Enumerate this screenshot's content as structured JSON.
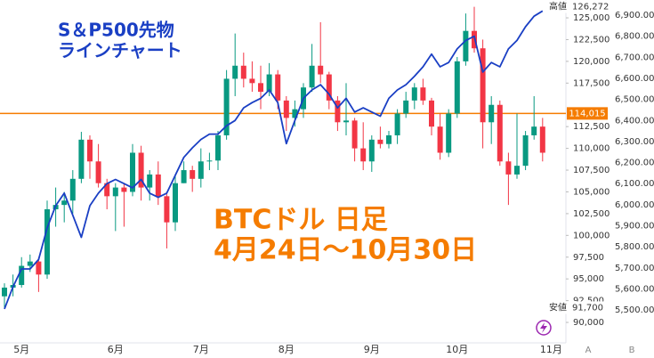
{
  "chart_data": {
    "type": "candlestick",
    "annotations": [
      "S＆P500先物",
      "ラインチャート",
      "BTCドル 日足",
      "4月24日〜10月30日"
    ],
    "annotation_colors": [
      "#1a3fc4",
      "#f57c00"
    ],
    "categories": [
      null,
      null,
      "5月",
      null,
      null,
      null,
      null,
      null,
      null,
      null,
      null,
      null,
      null,
      "6月",
      null,
      null,
      null,
      null,
      null,
      null,
      null,
      null,
      null,
      "7月",
      null,
      null,
      null,
      null,
      null,
      null,
      null,
      null,
      null,
      "8月",
      null,
      null,
      null,
      null,
      null,
      null,
      null,
      null,
      null,
      "9月",
      null,
      null,
      null,
      null,
      null,
      null,
      null,
      null,
      null,
      "10月",
      null,
      null,
      null,
      null,
      null,
      null,
      null,
      null,
      null,
      null,
      "11月"
    ],
    "candles": {
      "color_up": "#089981",
      "color_down": "#f23645",
      "ohlc": [
        [
          93000,
          94500,
          91700,
          94000
        ],
        [
          94000,
          95500,
          93000,
          94300
        ],
        [
          94300,
          97500,
          94000,
          96500
        ],
        [
          96500,
          97800,
          95800,
          97000
        ],
        [
          97000,
          97500,
          93500,
          95500
        ],
        [
          95500,
          104000,
          95000,
          103000
        ],
        [
          103000,
          105500,
          101000,
          103500
        ],
        [
          103500,
          105000,
          101500,
          104000
        ],
        [
          104000,
          107500,
          102500,
          106500
        ],
        [
          106500,
          111900,
          106000,
          111000
        ],
        [
          111000,
          111500,
          106500,
          108500
        ],
        [
          108500,
          110500,
          105500,
          106000
        ],
        [
          106000,
          106500,
          103000,
          104500
        ],
        [
          104500,
          106000,
          100500,
          105500
        ],
        [
          105500,
          106000,
          101000,
          105000
        ],
        [
          105000,
          110500,
          104500,
          109500
        ],
        [
          109500,
          110300,
          104000,
          105500
        ],
        [
          105500,
          107500,
          104000,
          107000
        ],
        [
          107000,
          108500,
          103500,
          104500
        ],
        [
          104500,
          105000,
          98500,
          101500
        ],
        [
          101500,
          107000,
          100500,
          106000
        ],
        [
          106000,
          108500,
          106000,
          107500
        ],
        [
          107500,
          108000,
          105000,
          106500
        ],
        [
          106500,
          110000,
          105500,
          108500
        ],
        [
          108500,
          109500,
          107500,
          108600
        ],
        [
          108600,
          112000,
          107500,
          111500
        ],
        [
          111500,
          119000,
          111000,
          118000
        ],
        [
          118000,
          123200,
          116000,
          119500
        ],
        [
          119500,
          121000,
          117000,
          118000
        ],
        [
          118000,
          120000,
          116500,
          117500
        ],
        [
          117500,
          119500,
          114500,
          116500
        ],
        [
          116500,
          119800,
          116000,
          118500
        ],
        [
          118500,
          119000,
          114500,
          115500
        ],
        [
          115500,
          116000,
          112000,
          113500
        ],
        [
          113500,
          115500,
          112500,
          114500
        ],
        [
          114500,
          117500,
          113500,
          117000
        ],
        [
          117000,
          122000,
          116500,
          119500
        ],
        [
          119500,
          124500,
          117500,
          118500
        ],
        [
          118500,
          118800,
          114500,
          115500
        ],
        [
          115500,
          116000,
          112000,
          113000
        ],
        [
          113000,
          117500,
          111500,
          113200
        ],
        [
          113200,
          113500,
          108500,
          110000
        ],
        [
          110000,
          113000,
          107500,
          108500
        ],
        [
          108500,
          111500,
          107300,
          111000
        ],
        [
          111000,
          112500,
          110000,
          110500
        ],
        [
          110500,
          112000,
          110000,
          111500
        ],
        [
          111500,
          114500,
          110500,
          114000
        ],
        [
          114000,
          116500,
          113500,
          115500
        ],
        [
          115500,
          117500,
          114500,
          117000
        ],
        [
          117000,
          118000,
          115000,
          115500
        ],
        [
          115500,
          115800,
          111500,
          112500
        ],
        [
          112500,
          114000,
          108700,
          109500
        ],
        [
          109500,
          114500,
          109000,
          114000
        ],
        [
          114000,
          120500,
          113500,
          120000
        ],
        [
          120000,
          125500,
          119500,
          123500
        ],
        [
          123500,
          126272,
          121000,
          121500
        ],
        [
          121500,
          122500,
          110000,
          113000
        ],
        [
          113000,
          116000,
          110500,
          115000
        ],
        [
          115000,
          115500,
          108000,
          108500
        ],
        [
          108500,
          109500,
          103500,
          107000
        ],
        [
          107000,
          114000,
          106500,
          108000
        ],
        [
          108000,
          112000,
          107500,
          111500
        ],
        [
          111500,
          116000,
          111000,
          112500
        ],
        [
          112500,
          113500,
          108500,
          109500
        ],
        null
      ]
    },
    "line": {
      "color": "#1a3fc4",
      "axis": "y2",
      "values": [
        5505,
        5610,
        5695,
        5695,
        5740,
        5890,
        5995,
        6055,
        5950,
        5845,
        5995,
        6055,
        6100,
        6120,
        6100,
        6080,
        6120,
        6055,
        6035,
        6055,
        6140,
        6225,
        6270,
        6310,
        6335,
        6335,
        6375,
        6400,
        6460,
        6485,
        6505,
        6545,
        6485,
        6290,
        6400,
        6505,
        6545,
        6570,
        6525,
        6460,
        6505,
        6440,
        6460,
        6440,
        6420,
        6505,
        6545,
        6570,
        6610,
        6655,
        6715,
        6655,
        6675,
        6740,
        6780,
        6800,
        6630,
        6675,
        6655,
        6740,
        6780,
        6845,
        6895,
        6920,
        null
      ]
    },
    "price_line": {
      "value": 114015,
      "label": "114,015",
      "color": "#f57c00"
    },
    "markers": [
      {
        "name": "高値",
        "value": 126272,
        "label": "126,272"
      },
      {
        "name": "安値",
        "value": 91700,
        "label": "91,700"
      }
    ],
    "ylim": [
      87650,
      127050
    ],
    "yticks": [
      {
        "value": 90000,
        "label": "90,000"
      },
      {
        "value": 92500,
        "label": "92,500"
      },
      {
        "value": 95000,
        "label": "95,000"
      },
      {
        "value": 97500,
        "label": "97,500"
      },
      {
        "value": 100000,
        "label": "100,000"
      },
      {
        "value": 102500,
        "label": "102,500"
      },
      {
        "value": 105000,
        "label": "105,000"
      },
      {
        "value": 107500,
        "label": "107,500"
      },
      {
        "value": 110000,
        "label": "110,000"
      },
      {
        "value": 112500,
        "label": "112,500"
      },
      {
        "value": 117500,
        "label": "117,500"
      },
      {
        "value": 120000,
        "label": "120,000"
      },
      {
        "value": 122500,
        "label": "122,500"
      },
      {
        "value": 125000,
        "label": "125,000"
      }
    ],
    "y2lim": [
      5344,
      6972
    ],
    "y2ticks": [
      {
        "value": 5500,
        "label": "5,500.00"
      },
      {
        "value": 5600,
        "label": "5,600.00"
      },
      {
        "value": 5700,
        "label": "5,700.00"
      },
      {
        "value": 5800,
        "label": "5,800.00"
      },
      {
        "value": 5900,
        "label": "5,900.00"
      },
      {
        "value": 6000,
        "label": "6,000.00"
      },
      {
        "value": 6100,
        "label": "6,100.00"
      },
      {
        "value": 6200,
        "label": "6,200.00"
      },
      {
        "value": 6300,
        "label": "6,300.00"
      },
      {
        "value": 6400,
        "label": "6,400.00"
      },
      {
        "value": 6500,
        "label": "6,500.00"
      },
      {
        "value": 6600,
        "label": "6,600.00"
      },
      {
        "value": 6700,
        "label": "6,700.00"
      },
      {
        "value": 6800,
        "label": "6,800.00"
      },
      {
        "value": 6900,
        "label": "6,900.00"
      }
    ],
    "axis_buttons": [
      "A",
      "B"
    ]
  }
}
